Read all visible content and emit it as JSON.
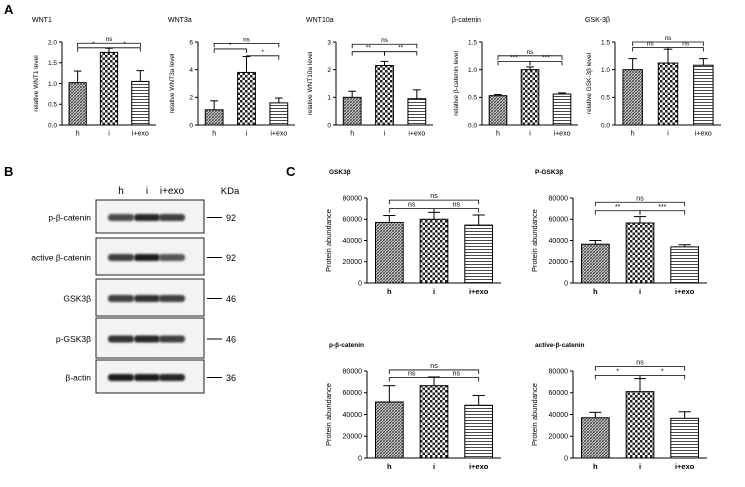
{
  "panel_labels": [
    "A",
    "B",
    "C"
  ],
  "patterns": {
    "h": "dense-hatch",
    "i": "checker",
    "i+exo": "horizontal-lines"
  },
  "chart_data": [
    {
      "type": "bar",
      "panel": "A",
      "title": "WNT1",
      "ylabel": "relative WNT1 level",
      "categories": [
        "h",
        "i",
        "i+exo"
      ],
      "values": [
        1.02,
        1.75,
        1.05
      ],
      "errors": [
        0.28,
        0.1,
        0.26
      ],
      "ylim": [
        0,
        2.0
      ],
      "yticks": [
        "0.0",
        "0.5",
        "1.0",
        "1.5",
        "2.0"
      ],
      "sig": [
        {
          "from": 0,
          "to": 1,
          "label": "*",
          "level": 1.86
        },
        {
          "from": 1,
          "to": 2,
          "label": "*",
          "level": 1.86
        },
        {
          "from": 0,
          "to": 2,
          "label": "ns",
          "level": 1.97
        }
      ]
    },
    {
      "type": "bar",
      "panel": "A",
      "title": "WNT3a",
      "ylabel": "relative WNT3a level",
      "categories": [
        "h",
        "i",
        "i+exo"
      ],
      "values": [
        1.1,
        3.8,
        1.6
      ],
      "errors": [
        0.65,
        1.15,
        0.35
      ],
      "ylim": [
        0,
        6
      ],
      "yticks": [
        "0",
        "2",
        "4",
        "6"
      ],
      "sig": [
        {
          "from": 0,
          "to": 1,
          "label": "*",
          "level": 5.5
        },
        {
          "from": 1,
          "to": 2,
          "label": "*",
          "level": 5.0
        },
        {
          "from": 0,
          "to": 2,
          "label": "ns",
          "level": 5.9
        }
      ]
    },
    {
      "type": "bar",
      "panel": "A",
      "title": "WNT10a",
      "ylabel": "relative WNT10a level",
      "categories": [
        "h",
        "i",
        "i+exo"
      ],
      "values": [
        1.0,
        2.15,
        0.95
      ],
      "errors": [
        0.22,
        0.15,
        0.32
      ],
      "ylim": [
        0,
        3
      ],
      "yticks": [
        "0",
        "1",
        "2",
        "3"
      ],
      "sig": [
        {
          "from": 0,
          "to": 1,
          "label": "**",
          "level": 2.65
        },
        {
          "from": 1,
          "to": 2,
          "label": "**",
          "level": 2.65
        },
        {
          "from": 0,
          "to": 2,
          "label": "ns",
          "level": 2.92
        }
      ]
    },
    {
      "type": "bar",
      "panel": "A",
      "title": "β-catenin",
      "ylabel": "relative β-catenin level",
      "categories": [
        "h",
        "i",
        "i+exo"
      ],
      "values": [
        0.53,
        1.0,
        0.56
      ],
      "errors": [
        0.02,
        0.05,
        0.02
      ],
      "ylim": [
        0,
        1.5
      ],
      "yticks": [
        "0.0",
        "0.5",
        "1.0",
        "1.5"
      ],
      "sig": [
        {
          "from": 0,
          "to": 1,
          "label": "***",
          "level": 1.15
        },
        {
          "from": 1,
          "to": 2,
          "label": "***",
          "level": 1.15
        },
        {
          "from": 0,
          "to": 2,
          "label": "ns",
          "level": 1.25
        }
      ]
    },
    {
      "type": "bar",
      "panel": "A",
      "title": "GSK-3β",
      "ylabel": "relative GSK-3β level",
      "categories": [
        "h",
        "i",
        "i+exo"
      ],
      "values": [
        1.0,
        1.12,
        1.08
      ],
      "errors": [
        0.2,
        0.25,
        0.12
      ],
      "ylim": [
        0,
        1.5
      ],
      "yticks": [
        "0.0",
        "0.5",
        "1.0",
        "1.5"
      ],
      "sig": [
        {
          "from": 0,
          "to": 1,
          "label": "ns",
          "level": 1.4
        },
        {
          "from": 1,
          "to": 2,
          "label": "ns",
          "level": 1.4
        },
        {
          "from": 0,
          "to": 2,
          "label": "ns",
          "level": 1.5
        }
      ]
    },
    {
      "type": "bar",
      "panel": "C",
      "title": "GSK3β",
      "ylabel": "Protein abundance",
      "categories": [
        "h",
        "i",
        "i+exo"
      ],
      "values": [
        57000,
        60000,
        54500
      ],
      "errors": [
        6500,
        6500,
        9500
      ],
      "ylim": [
        0,
        80000
      ],
      "yticks": [
        "0",
        "20000",
        "40000",
        "60000",
        "80000"
      ],
      "sig": [
        {
          "from": 0,
          "to": 1,
          "label": "ns",
          "level": 70000
        },
        {
          "from": 1,
          "to": 2,
          "label": "ns",
          "level": 70000
        },
        {
          "from": 0,
          "to": 2,
          "label": "ns",
          "level": 78000
        }
      ]
    },
    {
      "type": "bar",
      "panel": "C",
      "title": "P-GSK3β",
      "ylabel": "Protein abundance",
      "categories": [
        "h",
        "i",
        "i+exo"
      ],
      "values": [
        36500,
        56500,
        34000
      ],
      "errors": [
        3500,
        6000,
        2000
      ],
      "ylim": [
        0,
        80000
      ],
      "yticks": [
        "0",
        "20000",
        "40000",
        "60000",
        "80000"
      ],
      "sig": [
        {
          "from": 0,
          "to": 1,
          "label": "**",
          "level": 68000
        },
        {
          "from": 1,
          "to": 2,
          "label": "***",
          "level": 68000
        },
        {
          "from": 0,
          "to": 2,
          "label": "ns",
          "level": 76000
        }
      ]
    },
    {
      "type": "bar",
      "panel": "C",
      "title": "p-β-catenin",
      "ylabel": "Protein abundance",
      "categories": [
        "h",
        "i",
        "i+exo"
      ],
      "values": [
        51500,
        66500,
        48500
      ],
      "errors": [
        15000,
        8000,
        9000
      ],
      "ylim": [
        0,
        80000
      ],
      "yticks": [
        "0",
        "20000",
        "40000",
        "60000",
        "80000"
      ],
      "sig": [
        {
          "from": 0,
          "to": 1,
          "label": "ns",
          "level": 74000
        },
        {
          "from": 1,
          "to": 2,
          "label": "ns",
          "level": 74000
        },
        {
          "from": 0,
          "to": 2,
          "label": "ns",
          "level": 81000
        }
      ]
    },
    {
      "type": "bar",
      "panel": "C",
      "title": "active-β-catenin",
      "ylabel": "Protein abundance",
      "categories": [
        "h",
        "i",
        "i+exo"
      ],
      "values": [
        37000,
        61000,
        36500
      ],
      "errors": [
        5000,
        12000,
        6000
      ],
      "ylim": [
        0,
        80000
      ],
      "yticks": [
        "0",
        "20000",
        "40000",
        "60000",
        "80000"
      ],
      "sig": [
        {
          "from": 0,
          "to": 1,
          "label": "*",
          "level": 76000
        },
        {
          "from": 1,
          "to": 2,
          "label": "*",
          "level": 76000
        },
        {
          "from": 0,
          "to": 2,
          "label": "ns",
          "level": 84000
        }
      ]
    }
  ],
  "western_blot": {
    "lane_labels": [
      "h",
      "i",
      "i+exo"
    ],
    "unit_label": "KDa",
    "rows": [
      {
        "label": "p-β-catenin",
        "kda": "92",
        "intensity": [
          0.75,
          0.9,
          0.8
        ]
      },
      {
        "label": "active β-catenin",
        "kda": "92",
        "intensity": [
          0.8,
          0.95,
          0.7
        ]
      },
      {
        "label": "GSK3β",
        "kda": "46",
        "intensity": [
          0.8,
          0.85,
          0.8
        ]
      },
      {
        "label": "p-GSK3β",
        "kda": "46",
        "intensity": [
          0.85,
          0.9,
          0.8
        ]
      },
      {
        "label": "β-actin",
        "kda": "36",
        "intensity": [
          0.95,
          0.95,
          0.9
        ]
      }
    ]
  }
}
